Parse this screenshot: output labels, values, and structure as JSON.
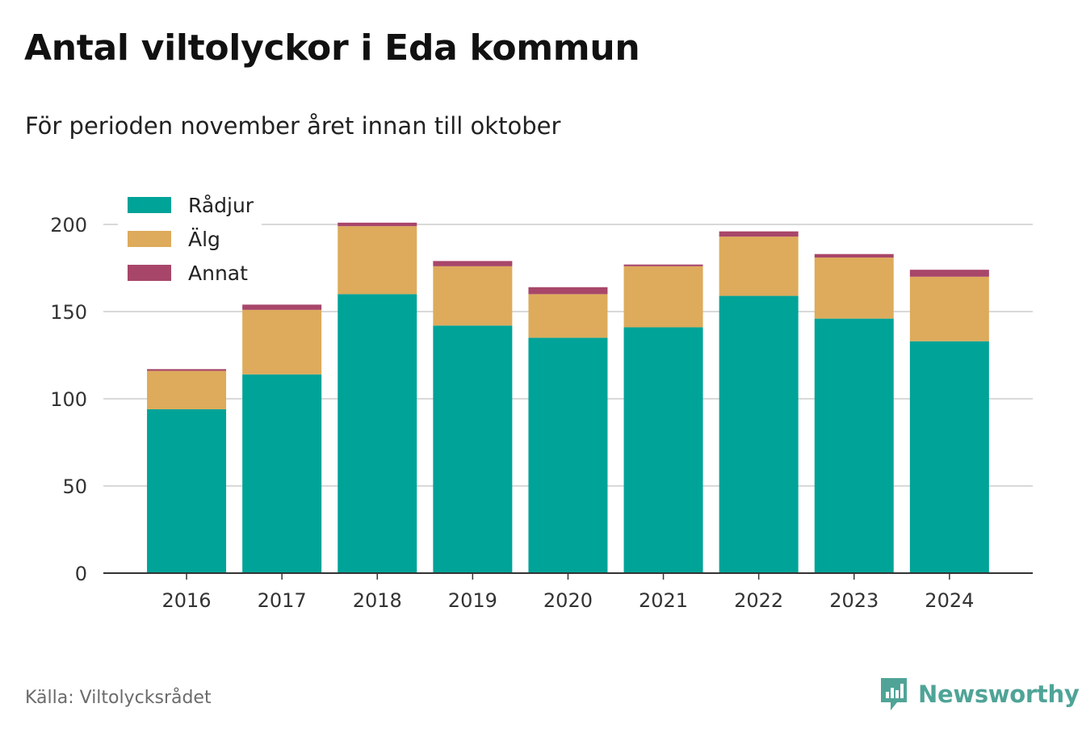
{
  "title": "Antal viltolyckor i Eda kommun",
  "subtitle": "För perioden november året innan till oktober",
  "source": "Källa: Viltolycksrådet",
  "brand": {
    "name": "Newsworthy",
    "icon": "bar-chart-logo-icon",
    "color": "#4fa497"
  },
  "chart_data": {
    "type": "bar",
    "stacked": true,
    "categories": [
      "2016",
      "2017",
      "2018",
      "2019",
      "2020",
      "2021",
      "2022",
      "2023",
      "2024"
    ],
    "series": [
      {
        "name": "Rådjur",
        "color": "#00a398",
        "values": [
          94,
          114,
          160,
          142,
          135,
          141,
          159,
          146,
          133
        ]
      },
      {
        "name": "Älg",
        "color": "#ddab5b",
        "values": [
          22,
          37,
          39,
          34,
          25,
          35,
          34,
          35,
          37
        ]
      },
      {
        "name": "Annat",
        "color": "#a8466a",
        "values": [
          1,
          3,
          2,
          3,
          4,
          1,
          3,
          2,
          4
        ]
      }
    ],
    "ylim": [
      0,
      200
    ],
    "yticks": [
      0,
      50,
      100,
      150,
      200
    ],
    "xlabel": "",
    "ylabel": "",
    "grid": true,
    "legend": "top-left"
  }
}
